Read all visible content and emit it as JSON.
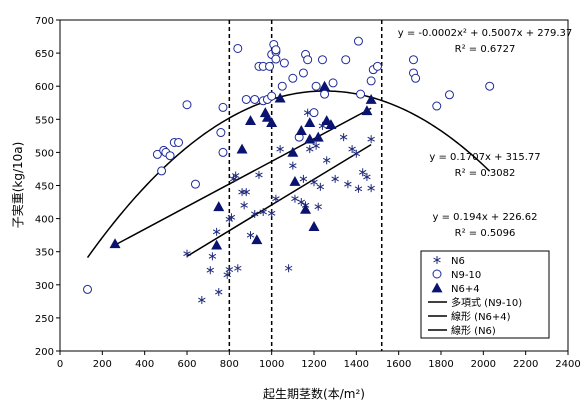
{
  "chart_data": {
    "type": "scatter",
    "xlabel": "起生期茎数(本/m²)",
    "ylabel": "子実重(kg/10a)",
    "xlim": [
      0,
      2400
    ],
    "ylim": [
      200,
      700
    ],
    "xticks": [
      "0",
      "200",
      "400",
      "600",
      "800",
      "1000",
      "1200",
      "1400",
      "1600",
      "1800",
      "2000",
      "2200",
      "2400"
    ],
    "yticks": [
      "200",
      "250",
      "300",
      "350",
      "400",
      "450",
      "500",
      "550",
      "600",
      "650",
      "700"
    ],
    "grid": false,
    "legend_position": "bottom-right",
    "vlines": [
      800,
      1000,
      1520
    ],
    "series": [
      {
        "name": "N6",
        "marker": "asterisk",
        "points": [
          [
            600,
            347
          ],
          [
            670,
            277
          ],
          [
            710,
            322
          ],
          [
            720,
            343
          ],
          [
            740,
            380
          ],
          [
            750,
            289
          ],
          [
            790,
            315
          ],
          [
            800,
            323
          ],
          [
            800,
            399
          ],
          [
            810,
            402
          ],
          [
            820,
            460
          ],
          [
            830,
            465
          ],
          [
            840,
            325
          ],
          [
            860,
            440
          ],
          [
            870,
            420
          ],
          [
            880,
            440
          ],
          [
            900,
            375
          ],
          [
            920,
            407
          ],
          [
            940,
            466
          ],
          [
            960,
            410
          ],
          [
            1000,
            408
          ],
          [
            1020,
            430
          ],
          [
            1040,
            505
          ],
          [
            1080,
            325
          ],
          [
            1100,
            480
          ],
          [
            1110,
            430
          ],
          [
            1140,
            425
          ],
          [
            1150,
            460
          ],
          [
            1160,
            420
          ],
          [
            1170,
            560
          ],
          [
            1180,
            505
          ],
          [
            1200,
            455
          ],
          [
            1210,
            510
          ],
          [
            1220,
            418
          ],
          [
            1230,
            448
          ],
          [
            1240,
            540
          ],
          [
            1260,
            488
          ],
          [
            1300,
            460
          ],
          [
            1340,
            523
          ],
          [
            1360,
            452
          ],
          [
            1380,
            505
          ],
          [
            1400,
            498
          ],
          [
            1410,
            445
          ],
          [
            1430,
            470
          ],
          [
            1450,
            463
          ],
          [
            1470,
            446
          ],
          [
            1470,
            520
          ]
        ]
      },
      {
        "name": "N9-10",
        "marker": "circle",
        "points": [
          [
            130,
            293
          ],
          [
            460,
            497
          ],
          [
            480,
            472
          ],
          [
            490,
            503
          ],
          [
            500,
            500
          ],
          [
            520,
            495
          ],
          [
            540,
            515
          ],
          [
            560,
            515
          ],
          [
            600,
            572
          ],
          [
            640,
            452
          ],
          [
            760,
            530
          ],
          [
            770,
            500
          ],
          [
            770,
            568
          ],
          [
            840,
            657
          ],
          [
            880,
            580
          ],
          [
            920,
            580
          ],
          [
            940,
            630
          ],
          [
            960,
            630
          ],
          [
            960,
            578
          ],
          [
            980,
            580
          ],
          [
            990,
            630
          ],
          [
            1000,
            585
          ],
          [
            1000,
            648
          ],
          [
            1010,
            663
          ],
          [
            1020,
            652
          ],
          [
            1020,
            641
          ],
          [
            1020,
            655
          ],
          [
            1050,
            600
          ],
          [
            1060,
            635
          ],
          [
            1100,
            612
          ],
          [
            1130,
            523
          ],
          [
            1150,
            620
          ],
          [
            1160,
            648
          ],
          [
            1170,
            640
          ],
          [
            1200,
            560
          ],
          [
            1210,
            600
          ],
          [
            1240,
            640
          ],
          [
            1250,
            588
          ],
          [
            1290,
            605
          ],
          [
            1350,
            640
          ],
          [
            1410,
            668
          ],
          [
            1420,
            588
          ],
          [
            1470,
            608
          ],
          [
            1480,
            625
          ],
          [
            1500,
            630
          ],
          [
            1670,
            640
          ],
          [
            1670,
            620
          ],
          [
            1680,
            612
          ],
          [
            1780,
            570
          ],
          [
            1840,
            587
          ],
          [
            2030,
            600
          ]
        ]
      },
      {
        "name": "N6+4",
        "marker": "triangle",
        "points": [
          [
            260,
            362
          ],
          [
            740,
            360
          ],
          [
            750,
            418
          ],
          [
            860,
            505
          ],
          [
            900,
            548
          ],
          [
            930,
            368
          ],
          [
            970,
            560
          ],
          [
            980,
            553
          ],
          [
            1000,
            545
          ],
          [
            1040,
            582
          ],
          [
            1100,
            500
          ],
          [
            1110,
            456
          ],
          [
            1140,
            533
          ],
          [
            1160,
            414
          ],
          [
            1180,
            520
          ],
          [
            1180,
            545
          ],
          [
            1200,
            388
          ],
          [
            1220,
            523
          ],
          [
            1250,
            600
          ],
          [
            1260,
            548
          ],
          [
            1280,
            542
          ],
          [
            1450,
            563
          ],
          [
            1470,
            580
          ]
        ]
      }
    ],
    "fits": [
      {
        "name": "多項式 (N9-10)",
        "type": "poly2",
        "coef": [
          -0.0002,
          0.5007,
          279.37
        ],
        "x_range": [
          130,
          2030
        ]
      },
      {
        "name": "線形 (N6+4)",
        "type": "linear",
        "coef": [
          0.1707,
          315.77
        ],
        "x_range": [
          260,
          1470
        ]
      },
      {
        "name": "線形 (N6)",
        "type": "linear",
        "coef": [
          0.194,
          226.62
        ],
        "x_range": [
          600,
          1470
        ]
      }
    ],
    "annotations": [
      {
        "eq": "y = -0.0002x² + 0.5007x + 279.37",
        "r2": "R² = 0.6727"
      },
      {
        "eq": "y = 0.1707x + 315.77",
        "r2": "R² = 0.3082"
      },
      {
        "eq": "y = 0.194x + 226.62",
        "r2": "R² = 0.5096"
      }
    ]
  }
}
